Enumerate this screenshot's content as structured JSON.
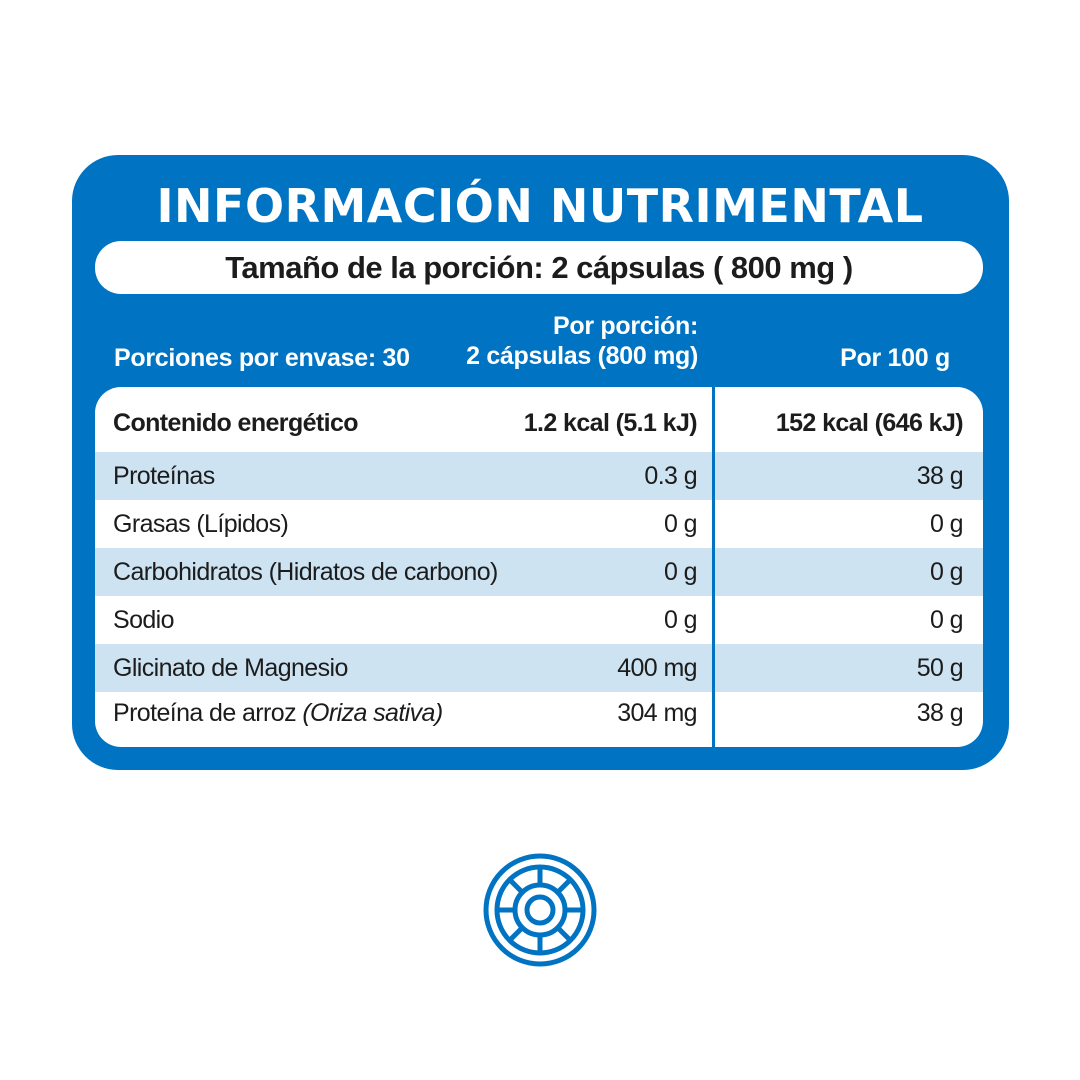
{
  "title": "INFORMACIÓN NUTRIMENTAL",
  "serving_size": "Tamaño de la porción: 2 cápsulas ( 800 mg )",
  "headers": {
    "servings_per_container": "Porciones por envase: 30",
    "per_portion_line1": "Por porción:",
    "per_portion_line2": "2 cápsulas (800 mg)",
    "per_100g": "Por 100 g"
  },
  "rows": [
    {
      "name": "Contenido energético",
      "per_portion": "1.2 kcal (5.1 kJ)",
      "per_100g": "152 kcal (646 kJ)"
    },
    {
      "name": "Proteínas",
      "per_portion": "0.3 g",
      "per_100g": "38 g"
    },
    {
      "name": "Grasas (Lípidos)",
      "per_portion": "0 g",
      "per_100g": "0 g"
    },
    {
      "name": "Carbohidratos (Hidratos de carbono)",
      "per_portion": "0 g",
      "per_100g": "0 g"
    },
    {
      "name": "Sodio",
      "per_portion": "0 g",
      "per_100g": "0 g"
    },
    {
      "name": "Glicinato de Magnesio",
      "per_portion": "400 mg",
      "per_100g": "50 g"
    },
    {
      "name": "Proteína de arroz",
      "name_italic": "(Oriza sativa)",
      "per_portion": "304 mg",
      "per_100g": "38 g"
    }
  ],
  "colors": {
    "brand_blue": "#0073c2",
    "row_shade": "#cde3f2",
    "text_dark": "#1c1c1c"
  },
  "logo": {
    "icon": "concentric-circle-logo-icon"
  }
}
